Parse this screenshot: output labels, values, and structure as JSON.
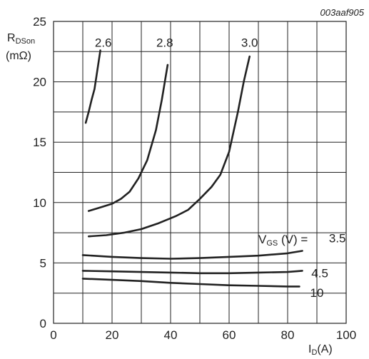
{
  "figure_id": "003aaf905",
  "chart_data": {
    "type": "line",
    "xlim": [
      0,
      100
    ],
    "ylim": [
      0,
      25
    ],
    "xticks": [
      0,
      20,
      40,
      60,
      80,
      100
    ],
    "yticks": [
      0,
      5,
      10,
      15,
      20,
      25
    ],
    "x_tick_labels": [
      "0",
      "20",
      "40",
      "60",
      "80",
      "100"
    ],
    "y_tick_labels": [
      "0",
      "5",
      "10",
      "15",
      "20",
      "25"
    ],
    "minor_step_x": 10,
    "minor_step_y": 2.5,
    "grid": true,
    "ylabel": {
      "main": "R",
      "sub": "DSon",
      "unit": "(mΩ)"
    },
    "xlabel": {
      "main": "I",
      "sub": "D",
      "unit": "(A)"
    },
    "legend_title": "VGS (V) =",
    "legend_title_parts": {
      "main": "V",
      "sub": "GS",
      "rest": " (V) ="
    },
    "series": [
      {
        "name": "2.6",
        "label": "2.6",
        "x": [
          11,
          12,
          13,
          14,
          15,
          16
        ],
        "y": [
          16.6,
          17.5,
          18.5,
          19.4,
          21.0,
          22.6
        ]
      },
      {
        "name": "2.8",
        "label": "2.8",
        "x": [
          12,
          16,
          20,
          23,
          26,
          29,
          32,
          35,
          37,
          39
        ],
        "y": [
          9.3,
          9.6,
          9.9,
          10.3,
          10.9,
          12.0,
          13.5,
          16.0,
          18.5,
          21.4
        ]
      },
      {
        "name": "3.0",
        "label": "3.0",
        "x": [
          12,
          18,
          24,
          30,
          36,
          42,
          46,
          50,
          54,
          57,
          60,
          63,
          65,
          67
        ],
        "y": [
          7.2,
          7.3,
          7.5,
          7.8,
          8.3,
          8.9,
          9.4,
          10.3,
          11.3,
          12.3,
          14.2,
          17.5,
          20.0,
          22.1
        ]
      },
      {
        "name": "3.5",
        "label": "3.5",
        "x": [
          10,
          20,
          30,
          40,
          50,
          60,
          70,
          80,
          85
        ],
        "y": [
          5.65,
          5.5,
          5.4,
          5.35,
          5.4,
          5.5,
          5.6,
          5.8,
          6.0
        ]
      },
      {
        "name": "4.5",
        "label": "4.5",
        "x": [
          10,
          20,
          30,
          40,
          50,
          60,
          70,
          80,
          85
        ],
        "y": [
          4.35,
          4.3,
          4.25,
          4.2,
          4.15,
          4.15,
          4.2,
          4.25,
          4.35
        ]
      },
      {
        "name": "10",
        "label": "10",
        "x": [
          10,
          20,
          30,
          40,
          50,
          60,
          70,
          80,
          84
        ],
        "y": [
          3.7,
          3.6,
          3.5,
          3.35,
          3.25,
          3.15,
          3.1,
          3.05,
          3.05
        ]
      }
    ]
  }
}
